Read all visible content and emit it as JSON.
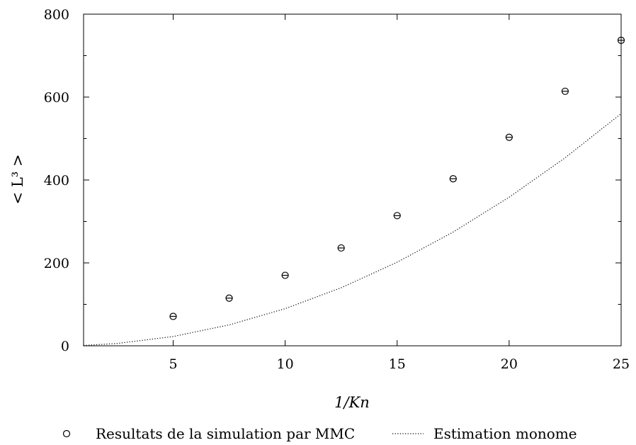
{
  "chart_data": {
    "type": "scatter",
    "title": "",
    "xlabel": "1/Kn",
    "ylabel": "< L³ >",
    "xlim": [
      1,
      25
    ],
    "ylim": [
      0,
      800
    ],
    "xticks": [
      5,
      10,
      15,
      20,
      25
    ],
    "yticks": [
      0,
      200,
      400,
      600,
      800
    ],
    "grid": false,
    "legend_position": "bottom",
    "series": [
      {
        "name": "Resultats de la simulation par MMC",
        "style": "markers",
        "marker": "open-circle",
        "x": [
          5,
          7.5,
          10,
          12.5,
          15,
          17.5,
          20,
          22.5,
          25
        ],
        "y": [
          71,
          115,
          170,
          236,
          314,
          403,
          503,
          614,
          737
        ]
      },
      {
        "name": "Estimation monome",
        "style": "dotted-line",
        "formula": "0.896 * x^2",
        "x": [
          1,
          2.5,
          5,
          7.5,
          10,
          12.5,
          15,
          17.5,
          20,
          22.5,
          25
        ],
        "y": [
          0.9,
          5.6,
          22.4,
          50.4,
          89.6,
          140,
          201.6,
          274.4,
          358.4,
          453.6,
          560
        ]
      }
    ]
  }
}
